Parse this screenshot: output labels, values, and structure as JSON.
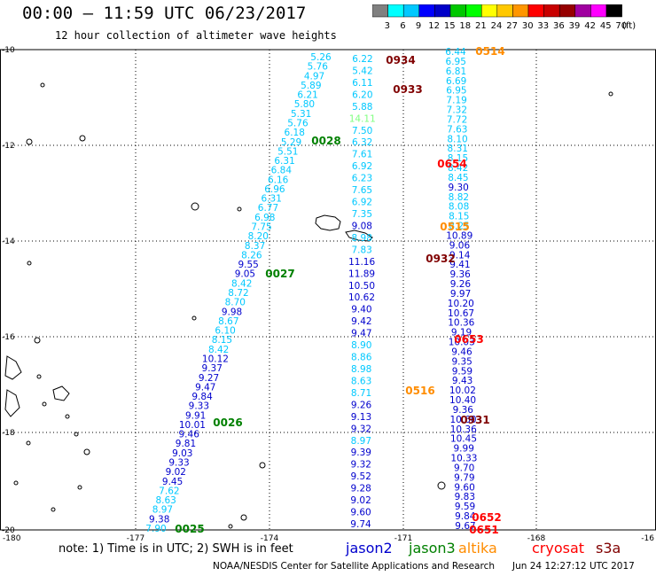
{
  "header": {
    "title": "00:00 – 11:59 UTC 06/23/2017",
    "subtitle": "12 hour collection of altimeter wave heights"
  },
  "colorbar": {
    "colors": [
      "#808080",
      "#00ffff",
      "#00c8ff",
      "#0000ff",
      "#0000c8",
      "#00c800",
      "#00ff00",
      "#ffff00",
      "#ffc800",
      "#ff9600",
      "#ff0000",
      "#c80000",
      "#960000",
      "#a000a0",
      "#ff00ff",
      "#000000"
    ],
    "labels": [
      "3",
      "6",
      "9",
      "12",
      "15",
      "18",
      "21",
      "24",
      "27",
      "30",
      "33",
      "36",
      "39",
      "42",
      "45",
      "70",
      "(ft)"
    ]
  },
  "axes": {
    "x_ticks": [
      "-180",
      "-177",
      "-174",
      "-171",
      "-168",
      "-16"
    ],
    "y_ticks": [
      "-10",
      "-12",
      "-14",
      "-16",
      "-18",
      "-20"
    ]
  },
  "tracks": [
    {
      "time": "0025",
      "color": "#008000",
      "values": [
        "5.26",
        "5.76",
        "4.97",
        "5.89",
        "6.21",
        "5.80",
        "5.31",
        "5.76",
        "6.18",
        "5.29",
        "5.51",
        "6.31",
        "6.84",
        "6.16",
        "6.96",
        "6.31",
        "6.77",
        "6.98",
        "7.75",
        "8.20",
        "8.37",
        "8.26",
        "9.55",
        "9.05",
        "8.42",
        "8.72",
        "8.70",
        "9.98",
        "8.67",
        "6.10",
        "8.15",
        "8.42",
        "10.12",
        "9.37",
        "9.27",
        "9.47",
        "9.84",
        "9.33",
        "9.91",
        "10.01",
        "9.46",
        "9.81",
        "9.03",
        "9.33",
        "9.02",
        "9.45",
        "7.62",
        "8.63",
        "8.97",
        "9.38",
        "7.90"
      ]
    },
    {
      "time": "0026",
      "color": "#008000",
      "values": []
    },
    {
      "time": "0027",
      "color": "#008000",
      "values": []
    },
    {
      "time": "0028",
      "color": "#008000",
      "values": []
    },
    {
      "time": "0931",
      "color": "#800000",
      "values": []
    },
    {
      "time": "0932",
      "color": "#800000",
      "values": []
    },
    {
      "time": "0933",
      "color": "#800000",
      "values": []
    },
    {
      "time": "0934",
      "color": "#800000",
      "values": []
    },
    {
      "time": "0514",
      "color": "#ff8c00",
      "values": []
    },
    {
      "time": "0515",
      "color": "#ff8c00",
      "values": []
    },
    {
      "time": "0516",
      "color": "#ff8c00",
      "values": []
    },
    {
      "time": "0651",
      "color": "#ff0000",
      "values": []
    },
    {
      "time": "0652",
      "color": "#ff0000",
      "values": []
    },
    {
      "time": "0653",
      "color": "#ff0000",
      "values": []
    },
    {
      "time": "0654",
      "color": "#ff0000",
      "values": []
    }
  ],
  "track2_values": [
    "6.22",
    "5.42",
    "6.11",
    "6.20",
    "5.88",
    "14.11",
    "7.50",
    "6.32",
    "7.61",
    "6.92",
    "6.23",
    "7.65",
    "6.92",
    "7.35",
    "9.08",
    "8.98",
    "7.83",
    "11.16",
    "11.89",
    "10.50",
    "10.62",
    "9.40",
    "9.42",
    "9.47",
    "8.90",
    "8.86",
    "8.98",
    "8.63",
    "8.71",
    "9.26",
    "9.13",
    "9.32",
    "8.97",
    "9.39",
    "9.32",
    "9.52",
    "9.28",
    "9.02",
    "9.60",
    "9.74"
  ],
  "track3_values": [
    "6.44",
    "6.95",
    "6.81",
    "6.69",
    "6.95",
    "7.19",
    "7.32",
    "7.72",
    "7.63",
    "8.10",
    "8.31",
    "8.15",
    "8.42",
    "8.45",
    "9.30",
    "8.82",
    "8.08",
    "8.15",
    "8.25",
    "10.89",
    "9.06",
    "9.14",
    "9.41",
    "9.36",
    "9.26",
    "9.97",
    "10.20",
    "10.67",
    "10.36",
    "9.19",
    "10.03",
    "9.46",
    "9.35",
    "9.59",
    "9.43",
    "10.02",
    "10.40",
    "9.36",
    "10.60",
    "10.36",
    "10.45",
    "9.99",
    "10.33",
    "9.70",
    "9.79",
    "9.60",
    "9.83",
    "9.59",
    "9.84",
    "9.67"
  ],
  "note": "note: 1) Time is in UTC; 2) SWH is in feet",
  "legend": [
    {
      "label": "jason2",
      "color": "#0000cd"
    },
    {
      "label": "jason3",
      "color": "#008000"
    },
    {
      "label": "altika",
      "color": "#ff8c00"
    },
    {
      "label": "cryosat",
      "color": "#ff0000"
    },
    {
      "label": "s3a",
      "color": "#800000"
    }
  ],
  "credit": "NOAA/NESDIS Center for Satellite Applications and Research",
  "stamp": "Jun 24 12:27:12 UTC 2017"
}
